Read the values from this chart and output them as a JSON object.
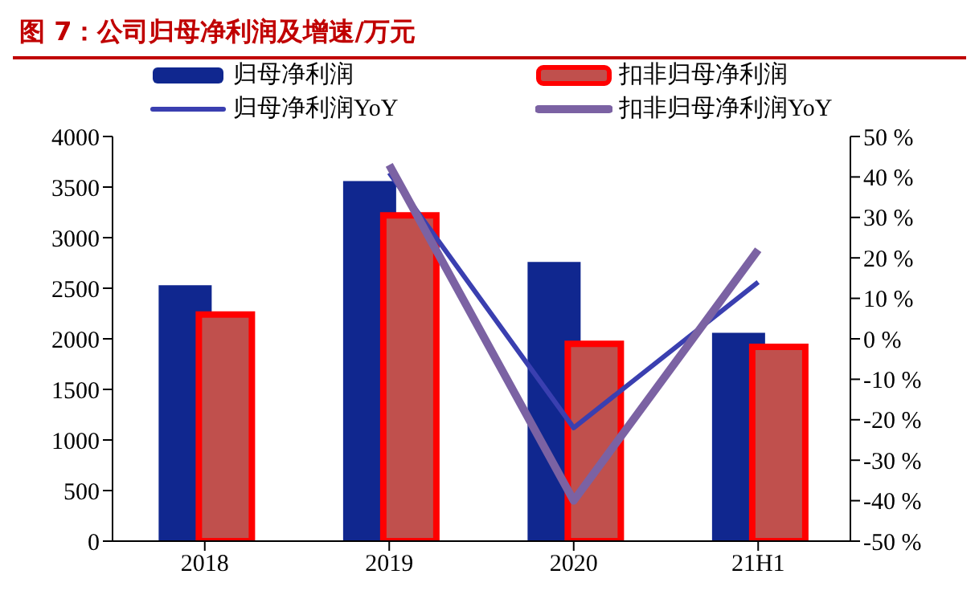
{
  "chart_data": {
    "type": "bar",
    "title": "图 7：公司归母净利润及增速/万元",
    "categories": [
      "2018",
      "2019",
      "2020",
      "21H1"
    ],
    "series": [
      {
        "name": "归母净利润",
        "color": "#10278f",
        "values": [
          2530,
          3560,
          2760,
          2060
        ]
      },
      {
        "name": "扣非归母净利润",
        "color": "#c0504d",
        "values": [
          2240,
          3220,
          1950,
          1920
        ]
      },
      {
        "name": "归母净利润YoY",
        "type": "line",
        "axis": "y2",
        "color": "#3a3fb0",
        "values": [
          null,
          41,
          -22,
          14
        ]
      },
      {
        "name": "扣非归母净利润YoY",
        "type": "line",
        "axis": "y2",
        "color": "#7b62a3",
        "values": [
          null,
          43,
          -40,
          22
        ]
      }
    ],
    "ylim": [
      0,
      4000
    ],
    "yticks": [
      0,
      500,
      1000,
      1500,
      2000,
      2500,
      3000,
      3500,
      4000
    ],
    "y2lim": [
      -50,
      50
    ],
    "y2ticks": [
      {
        "value": -50,
        "label": "-50 %"
      },
      {
        "value": -40,
        "label": "-40 %"
      },
      {
        "value": -30,
        "label": "-30 %"
      },
      {
        "value": -20,
        "label": "-20 %"
      },
      {
        "value": -10,
        "label": "-10 %"
      },
      {
        "value": 0,
        "label": "0 %"
      },
      {
        "value": 10,
        "label": "10 %"
      },
      {
        "value": 20,
        "label": "20 %"
      },
      {
        "value": 30,
        "label": "30 %"
      },
      {
        "value": 40,
        "label": "40 %"
      },
      {
        "value": 50,
        "label": "50 %"
      }
    ],
    "legend": "top",
    "grid": false,
    "marker": "none"
  }
}
